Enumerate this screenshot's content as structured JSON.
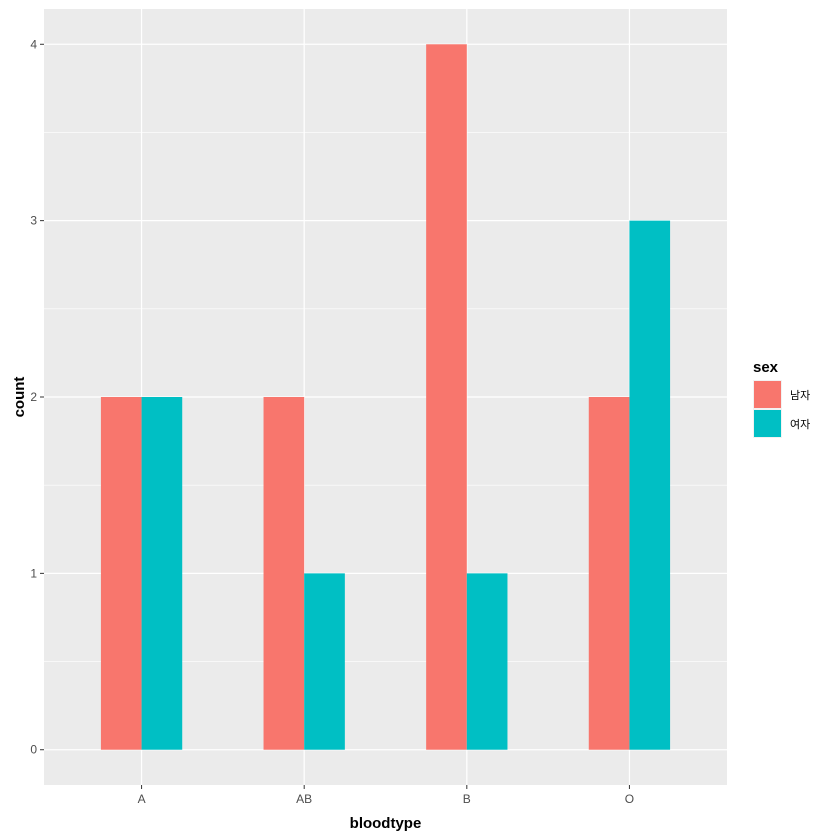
{
  "chart_data": {
    "type": "bar",
    "barmode": "group",
    "categories": [
      "A",
      "AB",
      "B",
      "O"
    ],
    "series": [
      {
        "name": "남자",
        "values": [
          2,
          2,
          4,
          2
        ],
        "color": "#F8766D"
      },
      {
        "name": "여자",
        "values": [
          2,
          1,
          1,
          3
        ],
        "color": "#00BFC4"
      }
    ],
    "xlabel": "bloodtype",
    "ylabel": "count",
    "ylim": [
      -0.2,
      4.2
    ],
    "yticks": [
      0,
      1,
      2,
      3,
      4
    ],
    "grid": true,
    "panel_background": "#EBEBEB",
    "gridline_color": "#FFFFFF",
    "legend": {
      "title": "sex",
      "position": "right"
    }
  }
}
